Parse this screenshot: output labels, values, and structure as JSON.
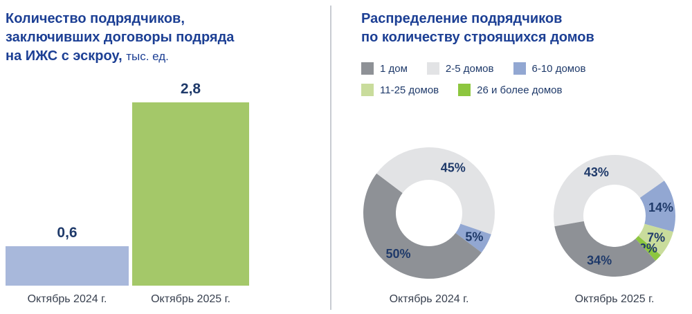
{
  "page": {
    "background": "#ffffff"
  },
  "colors": {
    "title": "#1c3f94",
    "data_label": "#1f3a6a",
    "axis_text": "#38404f",
    "divider": "#c8ccd2",
    "gray_dark": "#8e9196",
    "gray_light": "#e2e3e5",
    "blue": "#92a7d2",
    "green_light": "#c9dc9c",
    "green": "#8dc63f",
    "bar_blue": "#a8b8db",
    "bar_green": "#a4c869"
  },
  "left_panel": {
    "title_line1": "Количество подрядчиков,",
    "title_line2": "заключивших договоры подряда",
    "title_line3_bold": "на ИЖС с эскроу,",
    "title_line3_suffix": "тыс. ед."
  },
  "right_panel": {
    "title_line1": "Распределение подрядчиков",
    "title_line2": "по количеству строящихся домов",
    "legend": [
      {
        "label": "1 дом",
        "color_key": "gray_dark"
      },
      {
        "label": "2-5 домов",
        "color_key": "gray_light"
      },
      {
        "label": "6-10 домов",
        "color_key": "blue"
      },
      {
        "label": "11-25 домов",
        "color_key": "green_light"
      },
      {
        "label": "26 и более домов",
        "color_key": "green"
      }
    ]
  },
  "chart_data": [
    {
      "type": "bar",
      "title": "Количество подрядчиков, заключивших договоры подряда на ИЖС с эскроу, тыс. ед.",
      "unit": "тыс. ед.",
      "categories": [
        "Октябрь 2024 г.",
        "Октябрь 2025 г."
      ],
      "values": [
        0.6,
        2.8
      ],
      "value_labels": [
        "0,6",
        "2,8"
      ],
      "bar_color_keys": [
        "bar_blue",
        "bar_green"
      ],
      "ylim": [
        0,
        2.8
      ],
      "grid": false,
      "axis_lines": false
    },
    {
      "type": "pie",
      "subtype": "donut",
      "title": "Октябрь 2024 г.",
      "start_angle": -53,
      "legend_position": "top",
      "segments": [
        {
          "label": "2-5 домов",
          "value": 45,
          "display": "45%",
          "color_key": "gray_light"
        },
        {
          "label": "6-10 домов",
          "value": 5,
          "display": "5%",
          "color_key": "blue"
        },
        {
          "label": "1 дом",
          "value": 50,
          "display": "50%",
          "color_key": "gray_dark"
        }
      ]
    },
    {
      "type": "pie",
      "subtype": "donut",
      "title": "Октябрь 2025 г.",
      "start_angle": -100,
      "legend_position": "top",
      "segments": [
        {
          "label": "2-5 домов",
          "value": 43,
          "display": "43%",
          "color_key": "gray_light"
        },
        {
          "label": "6-10 домов",
          "value": 14,
          "display": "14%",
          "color_key": "blue"
        },
        {
          "label": "11-25 домов",
          "value": 7,
          "display": "7%",
          "color_key": "green_light"
        },
        {
          "label": "26 и более домов",
          "value": 2,
          "display": "2%",
          "color_key": "green"
        },
        {
          "label": "1 дом",
          "value": 34,
          "display": "34%",
          "color_key": "gray_dark"
        }
      ]
    }
  ]
}
